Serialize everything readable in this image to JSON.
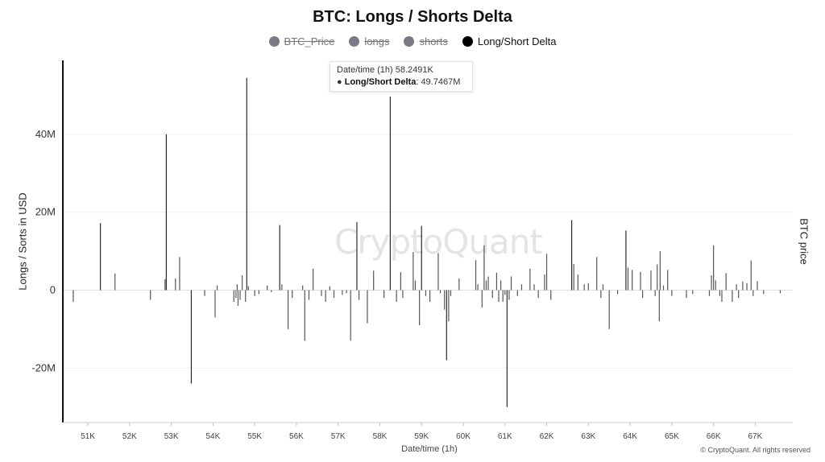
{
  "chart_data": {
    "type": "bar",
    "title": "BTC: Longs / Shorts Delta",
    "xlabel": "Date/time (1h)",
    "ylabel": "Longs / Sorts in USD",
    "ylabel_right": "BTC price",
    "legend": [
      {
        "name": "BTC_Price",
        "hidden": true
      },
      {
        "name": "longs",
        "hidden": true
      },
      {
        "name": "shorts",
        "hidden": true
      },
      {
        "name": "Long/Short Delta",
        "hidden": false
      }
    ],
    "legend_placement": "top-center",
    "grid": true,
    "xlim": [
      50400,
      67900
    ],
    "ylim": [
      -34000000,
      59000000
    ],
    "x_ticks": [
      {
        "value": 51000,
        "label": "51K"
      },
      {
        "value": 52000,
        "label": "52K"
      },
      {
        "value": 53000,
        "label": "53K"
      },
      {
        "value": 54000,
        "label": "54K"
      },
      {
        "value": 55000,
        "label": "55K"
      },
      {
        "value": 56000,
        "label": "56K"
      },
      {
        "value": 57000,
        "label": "57K"
      },
      {
        "value": 58000,
        "label": "58K"
      },
      {
        "value": 59000,
        "label": "59K"
      },
      {
        "value": 60000,
        "label": "60K"
      },
      {
        "value": 61000,
        "label": "61K"
      },
      {
        "value": 62000,
        "label": "62K"
      },
      {
        "value": 63000,
        "label": "63K"
      },
      {
        "value": 64000,
        "label": "64K"
      },
      {
        "value": 65000,
        "label": "65K"
      },
      {
        "value": 66000,
        "label": "66K"
      },
      {
        "value": 67000,
        "label": "67K"
      }
    ],
    "y_ticks": [
      {
        "value": 40000000,
        "label": "40M"
      },
      {
        "value": 20000000,
        "label": "20M"
      },
      {
        "value": 0,
        "label": "0"
      },
      {
        "value": -20000000,
        "label": "-20M"
      }
    ],
    "series": [
      {
        "name": "Long/Short Delta",
        "points": [
          [
            50650,
            -3000000
          ],
          [
            51300,
            17200000
          ],
          [
            51650,
            4300000
          ],
          [
            52500,
            -2500000
          ],
          [
            52850,
            2800000
          ],
          [
            52880,
            40000000
          ],
          [
            53100,
            3000000
          ],
          [
            53200,
            8500000
          ],
          [
            53480,
            -24000000
          ],
          [
            53800,
            -1500000
          ],
          [
            54050,
            -7000000
          ],
          [
            54100,
            1200000
          ],
          [
            54500,
            -3000000
          ],
          [
            54550,
            -2000000
          ],
          [
            54580,
            1500000
          ],
          [
            54600,
            -4000000
          ],
          [
            54650,
            -2500000
          ],
          [
            54700,
            3800000
          ],
          [
            54780,
            -3000000
          ],
          [
            54810,
            54500000
          ],
          [
            54850,
            1000000
          ],
          [
            55000,
            -1500000
          ],
          [
            55100,
            -1000000
          ],
          [
            55300,
            1200000
          ],
          [
            55400,
            -500000
          ],
          [
            55600,
            16700000
          ],
          [
            55650,
            1500000
          ],
          [
            55800,
            -10000000
          ],
          [
            55900,
            -2000000
          ],
          [
            56150,
            1200000
          ],
          [
            56200,
            -13000000
          ],
          [
            56300,
            -2500000
          ],
          [
            56400,
            5500000
          ],
          [
            56600,
            -1500000
          ],
          [
            56700,
            -3000000
          ],
          [
            56800,
            1000000
          ],
          [
            56900,
            -2000000
          ],
          [
            57100,
            -1200000
          ],
          [
            57200,
            -800000
          ],
          [
            57300,
            -13000000
          ],
          [
            57450,
            17500000
          ],
          [
            57500,
            -2500000
          ],
          [
            57700,
            -8500000
          ],
          [
            57850,
            5000000
          ],
          [
            58100,
            -2000000
          ],
          [
            58250,
            49700000
          ],
          [
            58400,
            -3000000
          ],
          [
            58500,
            4600000
          ],
          [
            58550,
            -2000000
          ],
          [
            58800,
            9800000
          ],
          [
            58850,
            2500000
          ],
          [
            58950,
            -9000000
          ],
          [
            59000,
            16500000
          ],
          [
            59100,
            -1500000
          ],
          [
            59200,
            -3000000
          ],
          [
            59400,
            9500000
          ],
          [
            59450,
            -800000
          ],
          [
            59550,
            -5000000
          ],
          [
            59600,
            -18000000
          ],
          [
            59650,
            -8000000
          ],
          [
            59700,
            -1500000
          ],
          [
            59900,
            3000000
          ],
          [
            60300,
            7700000
          ],
          [
            60350,
            1500000
          ],
          [
            60450,
            -4500000
          ],
          [
            60500,
            11500000
          ],
          [
            60550,
            2500000
          ],
          [
            60600,
            3500000
          ],
          [
            60700,
            -2000000
          ],
          [
            60800,
            4500000
          ],
          [
            60850,
            -3000000
          ],
          [
            60900,
            2500000
          ],
          [
            60950,
            -3000000
          ],
          [
            61000,
            -1200000
          ],
          [
            61050,
            -30000000
          ],
          [
            61100,
            -2500000
          ],
          [
            61150,
            3500000
          ],
          [
            61300,
            -1500000
          ],
          [
            61400,
            1500000
          ],
          [
            61600,
            5500000
          ],
          [
            61700,
            1500000
          ],
          [
            61800,
            -2000000
          ],
          [
            61950,
            4000000
          ],
          [
            62000,
            9300000
          ],
          [
            62100,
            -2500000
          ],
          [
            62600,
            18000000
          ],
          [
            62650,
            6700000
          ],
          [
            62750,
            4000000
          ],
          [
            62900,
            1500000
          ],
          [
            63000,
            1800000
          ],
          [
            63200,
            8500000
          ],
          [
            63300,
            -2000000
          ],
          [
            63350,
            1500000
          ],
          [
            63500,
            -10000000
          ],
          [
            63700,
            -1000000
          ],
          [
            63900,
            15300000
          ],
          [
            63950,
            5800000
          ],
          [
            64050,
            5200000
          ],
          [
            64250,
            4700000
          ],
          [
            64300,
            -2000000
          ],
          [
            64500,
            5000000
          ],
          [
            64600,
            -1500000
          ],
          [
            64650,
            6600000
          ],
          [
            64700,
            -8000000
          ],
          [
            64720,
            10000000
          ],
          [
            64800,
            1200000
          ],
          [
            64900,
            5200000
          ],
          [
            65000,
            -1500000
          ],
          [
            65350,
            -2000000
          ],
          [
            65500,
            -1000000
          ],
          [
            65900,
            -1500000
          ],
          [
            65950,
            3800000
          ],
          [
            66000,
            11500000
          ],
          [
            66050,
            2500000
          ],
          [
            66150,
            -1500000
          ],
          [
            66200,
            -3000000
          ],
          [
            66300,
            4400000
          ],
          [
            66450,
            -3000000
          ],
          [
            66550,
            1500000
          ],
          [
            66600,
            -2000000
          ],
          [
            66700,
            2200000
          ],
          [
            66800,
            1800000
          ],
          [
            66900,
            7600000
          ],
          [
            66950,
            -1500000
          ],
          [
            67050,
            2300000
          ],
          [
            67200,
            -1000000
          ],
          [
            67600,
            -800000
          ]
        ]
      }
    ],
    "tooltip": {
      "header": "Date/time (1h) 58.2491K",
      "series_label": "Long/Short Delta",
      "value_text": ": 49.7467M"
    },
    "watermark": "CryptoQuant",
    "copyright": "© CryptoQuant. All rights reserved"
  }
}
